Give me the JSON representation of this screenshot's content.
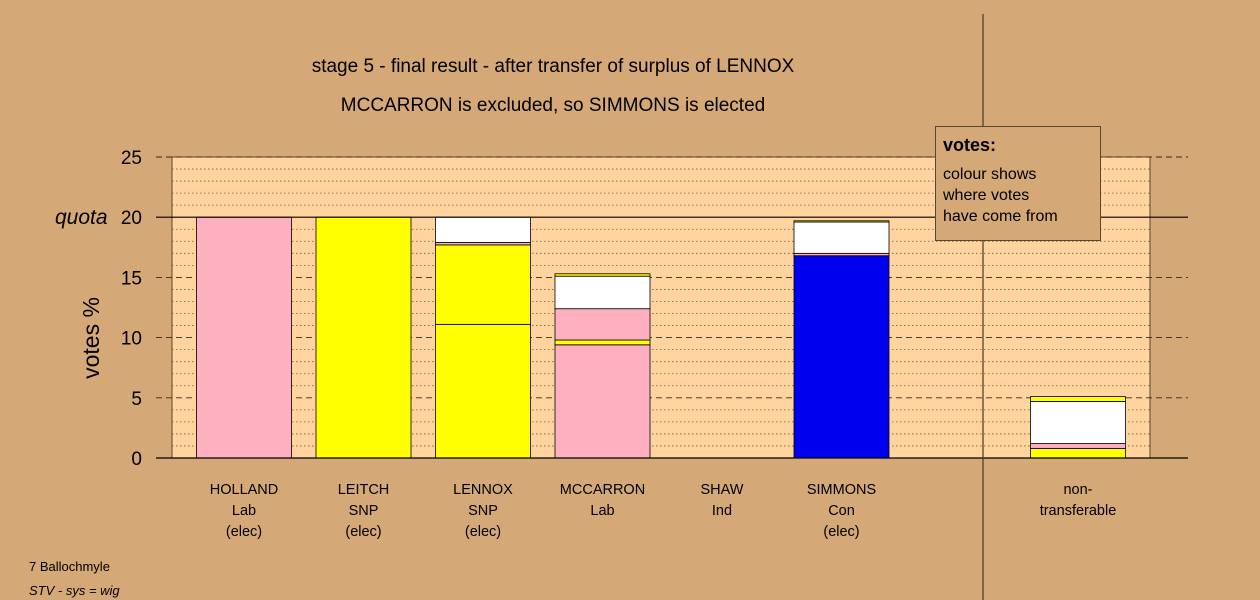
{
  "chart_data": {
    "type": "bar",
    "stacked": true,
    "title": "stage 5 - final result - after transfer of surplus of LENNOX",
    "subtitle": "MCCARRON is excluded, so SIMMONS is elected",
    "ylabel": "votes %",
    "ylim": [
      0,
      25
    ],
    "yticks": [
      0,
      5,
      10,
      15,
      20,
      25
    ],
    "quota": 20,
    "quota_label": "quota",
    "grid": "dashed",
    "colors": {
      "pink": "#ffb0c0",
      "yellow": "#ffff00",
      "white": "#ffffff",
      "blue": "#0000ee",
      "plot_bg": "#ffd49e",
      "page_bg": "#d4a877"
    },
    "candidates": [
      {
        "lines": [
          "HOLLAND",
          "Lab",
          "(elec)"
        ],
        "segments": [
          {
            "color": "pink",
            "value": 20.0
          }
        ]
      },
      {
        "lines": [
          "LEITCH",
          "SNP",
          "(elec)"
        ],
        "segments": [
          {
            "color": "yellow",
            "value": 20.0
          }
        ]
      },
      {
        "lines": [
          "LENNOX",
          "SNP",
          "(elec)"
        ],
        "segments": [
          {
            "color": "yellow",
            "value": 11.1
          },
          {
            "color": "yellow",
            "value": 6.6
          },
          {
            "color": "pink",
            "value": 0.2
          },
          {
            "color": "white",
            "value": 2.1
          }
        ]
      },
      {
        "lines": [
          "MCCARRON",
          "Lab"
        ],
        "segments": [
          {
            "color": "pink",
            "value": 9.4
          },
          {
            "color": "yellow",
            "value": 0.4
          },
          {
            "color": "pink",
            "value": 2.6
          },
          {
            "color": "white",
            "value": 2.7
          },
          {
            "color": "yellow",
            "value": 0.2
          }
        ]
      },
      {
        "lines": [
          "SHAW",
          "Ind"
        ],
        "segments": []
      },
      {
        "lines": [
          "SIMMONS",
          "Con",
          "(elec)"
        ],
        "segments": [
          {
            "color": "blue",
            "value": 16.8
          },
          {
            "color": "pink",
            "value": 0.2
          },
          {
            "color": "white",
            "value": 2.6
          },
          {
            "color": "yellow",
            "value": 0.1
          }
        ]
      }
    ],
    "non_transferable": {
      "lines": [
        "non-",
        "transferable"
      ],
      "segments": [
        {
          "color": "yellow",
          "value": 0.8
        },
        {
          "color": "pink",
          "value": 0.4
        },
        {
          "color": "white",
          "value": 3.5
        },
        {
          "color": "yellow",
          "value": 0.4
        }
      ]
    }
  },
  "legend": {
    "title": "votes:",
    "lines": [
      "colour shows",
      "where votes",
      "have come from"
    ]
  },
  "footer": {
    "ward": "7 Ballochmyle",
    "system": "STV - sys = wig"
  }
}
